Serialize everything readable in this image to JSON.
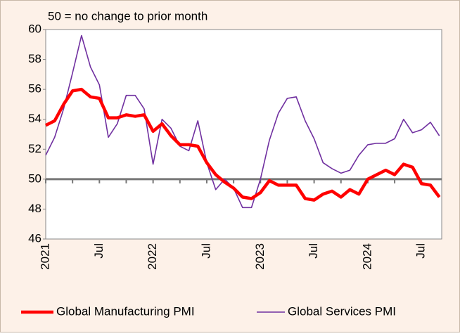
{
  "chart_data": {
    "type": "line",
    "annotation": "50 = no change to prior month",
    "categories": [
      "2021",
      null,
      null,
      null,
      null,
      null,
      "Jul",
      null,
      null,
      null,
      null,
      null,
      "2022",
      null,
      null,
      null,
      null,
      null,
      "Jul",
      null,
      null,
      null,
      null,
      null,
      "2023",
      null,
      null,
      null,
      null,
      null,
      "Jul",
      null,
      null,
      null,
      null,
      null,
      "2024",
      null,
      null,
      null,
      null,
      null,
      "Jul",
      null,
      null
    ],
    "series": [
      {
        "name": "Global Manufacturing PMI",
        "color": "#ff0000",
        "values": [
          53.6,
          53.9,
          55.0,
          55.9,
          56.0,
          55.5,
          55.4,
          54.1,
          54.1,
          54.3,
          54.2,
          54.3,
          53.2,
          53.7,
          52.9,
          52.3,
          52.3,
          52.2,
          51.1,
          50.3,
          49.8,
          49.4,
          48.8,
          48.7,
          49.1,
          49.9,
          49.6,
          49.6,
          49.6,
          48.7,
          48.6,
          49.0,
          49.2,
          48.8,
          49.3,
          49.0,
          50.0,
          50.3,
          50.6,
          50.3,
          51.0,
          50.8,
          49.7,
          49.6,
          48.8
        ]
      },
      {
        "name": "Global Services PMI",
        "color": "#7030a0",
        "values": [
          51.6,
          52.8,
          54.7,
          57.1,
          59.6,
          57.5,
          56.3,
          52.8,
          53.7,
          55.6,
          55.6,
          54.7,
          51.0,
          54.0,
          53.4,
          52.2,
          51.9,
          53.9,
          51.1,
          49.3,
          50.0,
          49.4,
          48.1,
          48.1,
          50.0,
          52.6,
          54.4,
          55.4,
          55.5,
          53.9,
          52.7,
          51.1,
          50.7,
          50.4,
          50.6,
          51.6,
          52.3,
          52.4,
          52.4,
          52.7,
          54.0,
          53.1,
          53.3,
          53.8,
          52.9
        ]
      }
    ],
    "ylim": [
      46,
      60
    ],
    "yticks": [
      46,
      48,
      50,
      52,
      54,
      56,
      58,
      60
    ],
    "hline": 50,
    "legend": "bottom"
  }
}
